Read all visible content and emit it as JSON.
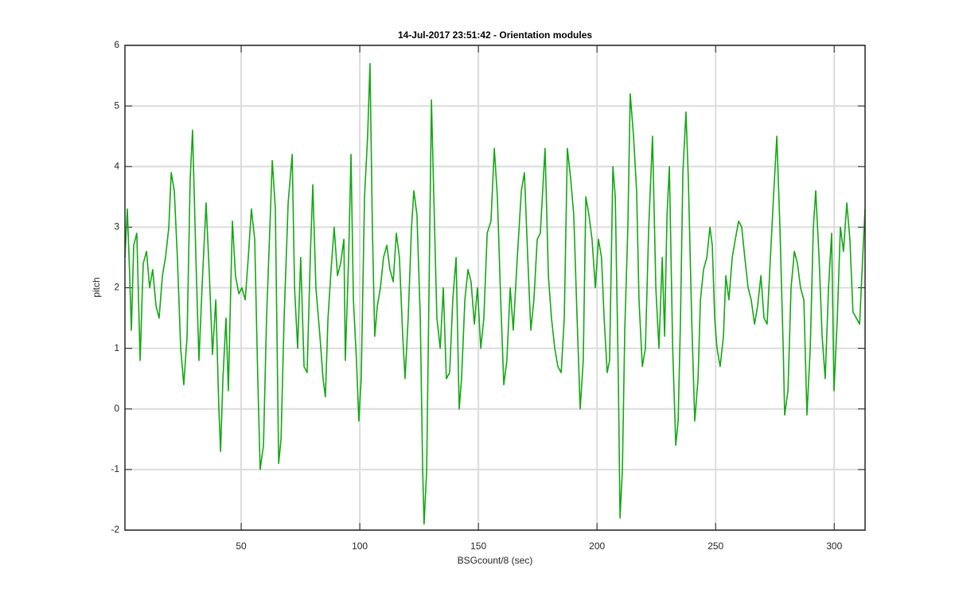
{
  "chart_data": {
    "type": "line",
    "title": "14-Jul-2017 23:51:42 - Orientation modules",
    "xlabel": "BSGcount/8 (sec)",
    "ylabel": "pitch",
    "color": "#13a813",
    "grid": true,
    "xlim": [
      1,
      313
    ],
    "ylim": [
      -2,
      6
    ],
    "xticks": [
      50,
      100,
      150,
      200,
      250,
      300
    ],
    "yticks": [
      -2,
      -1,
      0,
      1,
      2,
      3,
      4,
      5,
      6
    ],
    "x": [
      1.0,
      2.0,
      3.0,
      3.7,
      4.7,
      6.0,
      7.4,
      8.7,
      10.1,
      11.4,
      12.7,
      14.1,
      15.4,
      16.8,
      18.1,
      19.5,
      20.5,
      21.8,
      23.1,
      24.5,
      25.8,
      27.2,
      28.5,
      29.5,
      30.9,
      32.2,
      33.5,
      35.2,
      36.6,
      37.9,
      39.3,
      40.6,
      41.3,
      42.3,
      43.6,
      44.6,
      45.6,
      46.3,
      47.6,
      49.0,
      50.3,
      51.7,
      53.0,
      54.3,
      55.7,
      57.0,
      58.0,
      59.4,
      60.7,
      62.1,
      63.1,
      64.4,
      65.8,
      66.8,
      68.1,
      69.8,
      71.5,
      72.5,
      73.8,
      75.1,
      76.5,
      77.8,
      79.2,
      80.2,
      81.5,
      83.2,
      84.5,
      85.5,
      86.6,
      87.9,
      89.2,
      90.6,
      91.9,
      93.3,
      93.9,
      95.3,
      96.3,
      97.3,
      98.6,
      99.6,
      100.6,
      102.0,
      103.3,
      104.3,
      105.3,
      106.3,
      107.4,
      108.7,
      110.0,
      111.4,
      112.7,
      114.1,
      115.4,
      116.7,
      118.1,
      119.1,
      120.4,
      121.8,
      122.8,
      124.1,
      125.5,
      126.5,
      127.1,
      128.2,
      129.2,
      130.2,
      131.2,
      132.5,
      133.9,
      135.2,
      136.5,
      137.9,
      139.2,
      140.6,
      141.9,
      142.9,
      144.3,
      145.6,
      146.9,
      148.3,
      149.6,
      151.0,
      152.3,
      153.7,
      155.3,
      156.7,
      158.0,
      159.4,
      160.7,
      162.0,
      163.4,
      164.7,
      166.4,
      168.1,
      169.4,
      170.8,
      172.1,
      173.4,
      174.8,
      176.1,
      178.1,
      179.5,
      180.8,
      182.2,
      183.5,
      184.9,
      186.2,
      187.5,
      188.9,
      190.2,
      191.6,
      192.9,
      194.2,
      195.3,
      196.6,
      197.9,
      199.3,
      200.6,
      201.9,
      203.0,
      204.3,
      205.3,
      206.7,
      207.7,
      209.0,
      209.7,
      210.7,
      211.7,
      213.0,
      214.0,
      215.4,
      216.7,
      217.7,
      219.1,
      220.4,
      221.8,
      223.4,
      224.8,
      226.1,
      227.5,
      228.5,
      229.5,
      230.5,
      231.9,
      233.2,
      234.2,
      235.2,
      236.2,
      237.5,
      238.5,
      239.9,
      241.2,
      242.6,
      243.6,
      244.9,
      246.3,
      247.6,
      248.6,
      249.6,
      250.6,
      251.9,
      253.3,
      254.3,
      255.6,
      257.0,
      258.3,
      259.7,
      261.0,
      262.3,
      263.7,
      265.0,
      266.4,
      267.7,
      269.1,
      270.4,
      271.7,
      273.1,
      274.4,
      275.8,
      277.1,
      278.5,
      279.1,
      280.5,
      281.8,
      283.2,
      284.5,
      285.8,
      287.2,
      288.5,
      289.9,
      291.2,
      292.2,
      293.6,
      294.9,
      296.2,
      297.6,
      298.9,
      299.9,
      301.3,
      302.6,
      303.9,
      305.3,
      306.6,
      307.9,
      309.3,
      310.7,
      312.0,
      313.0
    ],
    "values": [
      2.5,
      3.3,
      2.2,
      1.3,
      2.7,
      2.9,
      0.8,
      2.4,
      2.6,
      2.0,
      2.3,
      1.7,
      1.5,
      2.2,
      2.5,
      3.0,
      3.9,
      3.6,
      2.5,
      1.0,
      0.4,
      1.2,
      3.8,
      4.6,
      2.5,
      0.8,
      2.0,
      3.4,
      2.2,
      0.9,
      1.8,
      0.0,
      -0.7,
      0.5,
      1.5,
      0.3,
      2.0,
      3.1,
      2.2,
      1.9,
      2.0,
      1.8,
      2.5,
      3.3,
      2.8,
      0.5,
      -1.0,
      -0.6,
      1.5,
      3.0,
      4.1,
      3.3,
      -0.9,
      -0.5,
      1.5,
      3.4,
      4.2,
      2.0,
      1.0,
      2.5,
      0.7,
      0.6,
      2.6,
      3.7,
      2.0,
      1.2,
      0.5,
      0.2,
      1.5,
      2.3,
      3.0,
      2.2,
      2.4,
      2.8,
      0.8,
      2.5,
      4.2,
      1.8,
      0.8,
      -0.2,
      0.5,
      3.5,
      4.5,
      5.7,
      3.0,
      1.2,
      1.7,
      2.0,
      2.5,
      2.7,
      2.3,
      2.1,
      2.9,
      2.5,
      1.2,
      0.5,
      1.5,
      3.0,
      3.6,
      3.2,
      1.5,
      -1.0,
      -1.9,
      -1.0,
      2.0,
      5.1,
      3.5,
      1.5,
      1.0,
      2.0,
      0.5,
      0.6,
      1.8,
      2.5,
      0.0,
      0.5,
      1.8,
      2.3,
      2.1,
      1.4,
      2.0,
      1.0,
      1.5,
      2.9,
      3.1,
      4.3,
      3.5,
      1.8,
      0.4,
      0.8,
      2.0,
      1.3,
      2.5,
      3.6,
      3.9,
      2.5,
      1.3,
      1.8,
      2.8,
      2.9,
      4.3,
      2.2,
      1.5,
      1.0,
      0.7,
      0.6,
      1.5,
      4.3,
      3.8,
      3.2,
      1.5,
      0.0,
      0.8,
      3.5,
      3.2,
      2.8,
      2.0,
      2.8,
      2.5,
      1.5,
      0.6,
      0.8,
      4.0,
      3.5,
      0.5,
      -1.8,
      -1.0,
      1.3,
      3.0,
      5.2,
      4.5,
      3.6,
      1.8,
      0.7,
      1.0,
      3.0,
      4.5,
      2.0,
      1.0,
      2.5,
      1.2,
      3.2,
      4.0,
      1.0,
      -0.6,
      -0.2,
      1.5,
      3.9,
      4.9,
      3.8,
      1.5,
      -0.2,
      0.5,
      1.8,
      2.3,
      2.5,
      3.0,
      2.7,
      1.5,
      1.0,
      0.7,
      1.2,
      2.2,
      1.8,
      2.5,
      2.8,
      3.1,
      3.0,
      2.5,
      2.0,
      1.8,
      1.4,
      1.7,
      2.2,
      1.5,
      1.4,
      2.5,
      3.5,
      4.5,
      3.0,
      1.0,
      -0.1,
      0.3,
      2.0,
      2.6,
      2.4,
      2.0,
      1.8,
      -0.1,
      1.0,
      3.0,
      3.6,
      2.5,
      1.2,
      0.5,
      2.0,
      2.9,
      0.3,
      1.5,
      3.0,
      2.6,
      3.4,
      2.8,
      1.6,
      1.5,
      1.4,
      2.5,
      3.3
    ]
  }
}
